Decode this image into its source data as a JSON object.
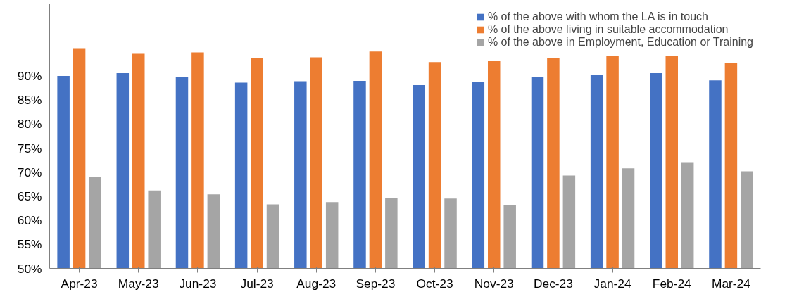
{
  "chart_data": {
    "type": "bar",
    "categories": [
      "Apr-23",
      "May-23",
      "Jun-23",
      "Jul-23",
      "Aug-23",
      "Sep-23",
      "Oct-23",
      "Nov-23",
      "Dec-23",
      "Jan-24",
      "Feb-24",
      "Mar-24"
    ],
    "series": [
      {
        "name": "% of the above with whom the LA is in touch",
        "color": "#4472c4",
        "values": [
          90.0,
          90.6,
          89.8,
          88.6,
          88.9,
          89.0,
          88.1,
          88.8,
          89.7,
          90.2,
          90.6,
          89.1
        ]
      },
      {
        "name": "% of the above living in suitable accommodation",
        "color": "#ed7d31",
        "values": [
          95.8,
          94.6,
          94.9,
          93.8,
          93.9,
          95.1,
          92.9,
          93.2,
          93.8,
          94.1,
          94.2,
          92.7
        ]
      },
      {
        "name": "% of the above in Employment, Education or Training",
        "color": "#a5a5a5",
        "values": [
          69.0,
          66.2,
          65.4,
          63.3,
          63.8,
          64.6,
          64.5,
          63.1,
          69.3,
          70.8,
          72.1,
          70.2
        ]
      }
    ],
    "ylim": [
      50,
      105
    ],
    "yticks": [
      {
        "value": 50,
        "label": "50%"
      },
      {
        "value": 55,
        "label": "55%"
      },
      {
        "value": 60,
        "label": "60%"
      },
      {
        "value": 65,
        "label": "65%"
      },
      {
        "value": 70,
        "label": "70%"
      },
      {
        "value": 75,
        "label": "75%"
      },
      {
        "value": 80,
        "label": "80%"
      },
      {
        "value": 85,
        "label": "85%"
      },
      {
        "value": 90,
        "label": "90%"
      }
    ],
    "grid": false,
    "legend": "top right"
  }
}
